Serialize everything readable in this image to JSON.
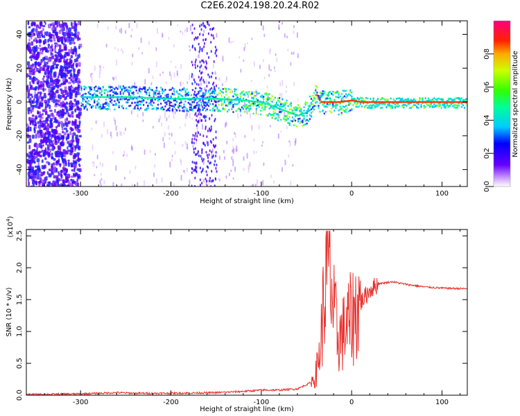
{
  "title": "C2E6.2024.198.20.24.R02",
  "chart_data": [
    {
      "type": "heatmap",
      "xlabel": "Height of straight line (km)",
      "ylabel": "Frequency (Hz)",
      "xlim": [
        -360,
        128
      ],
      "ylim": [
        -50,
        48
      ],
      "xticks": [
        -300,
        -200,
        -100,
        0,
        100
      ],
      "yticks": [
        -40,
        -20,
        0,
        20,
        40
      ],
      "colorbar": {
        "label": "Normalized spectral amplitude",
        "range": [
          0,
          1
        ],
        "ticks": [
          "0.0",
          "0.2",
          "0.4",
          "0.6",
          "0.8"
        ]
      },
      "ridge": {
        "x": [
          -300,
          -250,
          -200,
          -150,
          -120,
          -100,
          -80,
          -60,
          -50,
          -40,
          -35,
          -25,
          -15,
          0,
          10,
          30,
          60,
          100,
          128
        ],
        "freq": [
          3,
          3,
          2,
          2,
          1,
          0,
          -4,
          -8,
          -6,
          5,
          0,
          0,
          0,
          1,
          0,
          0,
          0,
          0,
          0
        ]
      }
    },
    {
      "type": "line",
      "xlabel": "Height of straight line (km)",
      "ylabel": "SNR (10 * v/v)",
      "yscale_label": "(x10",
      "yscale_exp": "4",
      "ylabel_close": ")",
      "xlim": [
        -360,
        128
      ],
      "ylim": [
        0,
        2.6
      ],
      "xticks": [
        -300,
        -200,
        -100,
        0,
        100
      ],
      "yticks": [
        "0.0",
        "0.5",
        "1.0",
        "1.5",
        "2.0",
        "2.5"
      ],
      "series": [
        {
          "color": "#e8302c",
          "x": [
            -360,
            -300,
            -280,
            -260,
            -240,
            -200,
            -150,
            -120,
            -100,
            -80,
            -60,
            -45,
            -40,
            -35,
            -30,
            -25,
            -20,
            -15,
            -10,
            -5,
            0,
            10,
            20,
            30,
            45,
            60,
            80,
            100,
            128
          ],
          "y": [
            0.01,
            0.02,
            0.03,
            0.04,
            0.03,
            0.03,
            0.04,
            0.06,
            0.08,
            0.08,
            0.1,
            0.2,
            0.3,
            0.7,
            1.6,
            2.1,
            1.3,
            0.9,
            0.95,
            1.1,
            1.2,
            1.45,
            1.65,
            1.75,
            1.78,
            1.74,
            1.7,
            1.68,
            1.67
          ]
        }
      ]
    }
  ]
}
